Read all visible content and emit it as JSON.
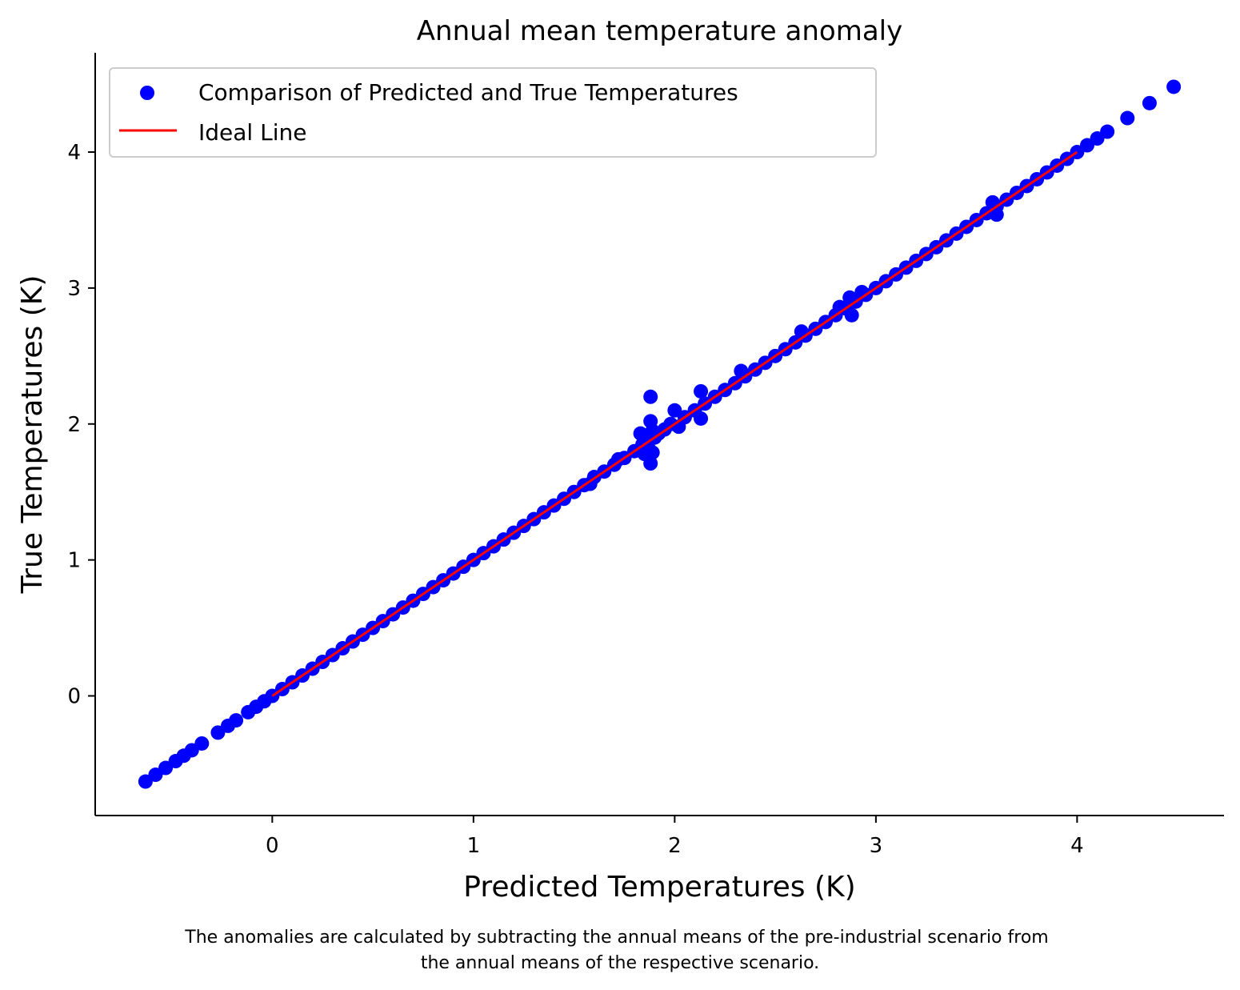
{
  "chart_data": {
    "type": "scatter",
    "title": "Annual mean temperature anomaly",
    "xlabel": "Predicted Temperatures (K)",
    "ylabel": "True Temperatures (K)",
    "xlim": [
      -0.88,
      4.73
    ],
    "ylim": [
      -0.88,
      4.73
    ],
    "xticks": [
      0,
      1,
      2,
      3,
      4
    ],
    "yticks": [
      0,
      1,
      2,
      3,
      4
    ],
    "grid": false,
    "legend_position": "upper-left",
    "colors": {
      "scatter": "#0000ff",
      "ideal_line": "#ff0000"
    },
    "series": [
      {
        "name": "Comparison of Predicted and True Temperatures",
        "kind": "scatter",
        "color": "#0000ff",
        "x": [
          -0.63,
          -0.58,
          -0.53,
          -0.48,
          -0.44,
          -0.4,
          -0.35,
          -0.27,
          -0.22,
          -0.18,
          -0.12,
          -0.08,
          -0.04,
          0.0,
          0.05,
          0.1,
          0.15,
          0.2,
          0.25,
          0.3,
          0.35,
          0.4,
          0.45,
          0.5,
          0.55,
          0.6,
          0.65,
          0.7,
          0.75,
          0.8,
          0.85,
          0.9,
          0.95,
          1.0,
          1.05,
          1.1,
          1.15,
          1.2,
          1.25,
          1.3,
          1.35,
          1.4,
          1.45,
          1.5,
          1.55,
          1.58,
          1.6,
          1.65,
          1.7,
          1.72,
          1.75,
          1.8,
          1.83,
          1.84,
          1.85,
          1.86,
          1.87,
          1.88,
          1.88,
          1.88,
          1.89,
          1.89,
          1.9,
          1.92,
          1.95,
          1.98,
          2.0,
          2.02,
          2.05,
          2.1,
          2.13,
          2.13,
          2.15,
          2.2,
          2.25,
          2.3,
          2.33,
          2.35,
          2.4,
          2.45,
          2.5,
          2.55,
          2.6,
          2.63,
          2.65,
          2.7,
          2.75,
          2.8,
          2.82,
          2.85,
          2.87,
          2.88,
          2.9,
          2.93,
          2.95,
          3.0,
          3.05,
          3.1,
          3.15,
          3.2,
          3.25,
          3.3,
          3.35,
          3.4,
          3.45,
          3.5,
          3.55,
          3.58,
          3.6,
          3.6,
          3.65,
          3.7,
          3.75,
          3.8,
          3.85,
          3.9,
          3.95,
          4.0,
          4.05,
          4.1,
          4.15,
          4.25,
          4.36,
          4.48
        ],
        "y": [
          -0.63,
          -0.58,
          -0.53,
          -0.48,
          -0.44,
          -0.4,
          -0.35,
          -0.27,
          -0.22,
          -0.18,
          -0.12,
          -0.08,
          -0.04,
          0.0,
          0.05,
          0.1,
          0.15,
          0.2,
          0.25,
          0.3,
          0.35,
          0.4,
          0.45,
          0.5,
          0.55,
          0.6,
          0.65,
          0.7,
          0.75,
          0.8,
          0.85,
          0.9,
          0.95,
          1.0,
          1.05,
          1.1,
          1.15,
          1.2,
          1.25,
          1.3,
          1.35,
          1.4,
          1.45,
          1.5,
          1.55,
          1.56,
          1.61,
          1.65,
          1.7,
          1.74,
          1.75,
          1.8,
          1.93,
          1.85,
          1.78,
          1.91,
          1.82,
          2.2,
          2.02,
          1.71,
          1.79,
          1.95,
          1.9,
          1.93,
          1.96,
          2.0,
          2.1,
          1.98,
          2.05,
          2.1,
          2.24,
          2.04,
          2.15,
          2.2,
          2.25,
          2.3,
          2.39,
          2.35,
          2.4,
          2.45,
          2.5,
          2.55,
          2.6,
          2.68,
          2.65,
          2.7,
          2.75,
          2.8,
          2.86,
          2.85,
          2.93,
          2.8,
          2.9,
          2.97,
          2.95,
          3.0,
          3.05,
          3.1,
          3.15,
          3.2,
          3.25,
          3.3,
          3.35,
          3.4,
          3.45,
          3.5,
          3.55,
          3.63,
          3.6,
          3.54,
          3.65,
          3.7,
          3.75,
          3.8,
          3.85,
          3.9,
          3.95,
          4.0,
          4.05,
          4.1,
          4.15,
          4.25,
          4.36,
          4.48
        ]
      },
      {
        "name": "Ideal Line",
        "kind": "line",
        "color": "#ff0000",
        "x": [
          0,
          4
        ],
        "y": [
          0,
          4
        ]
      }
    ],
    "caption_lines": [
      "The anomalies are calculated by subtracting the annual means of the pre-industrial scenario from",
      "the annual means of the respective scenario."
    ]
  }
}
